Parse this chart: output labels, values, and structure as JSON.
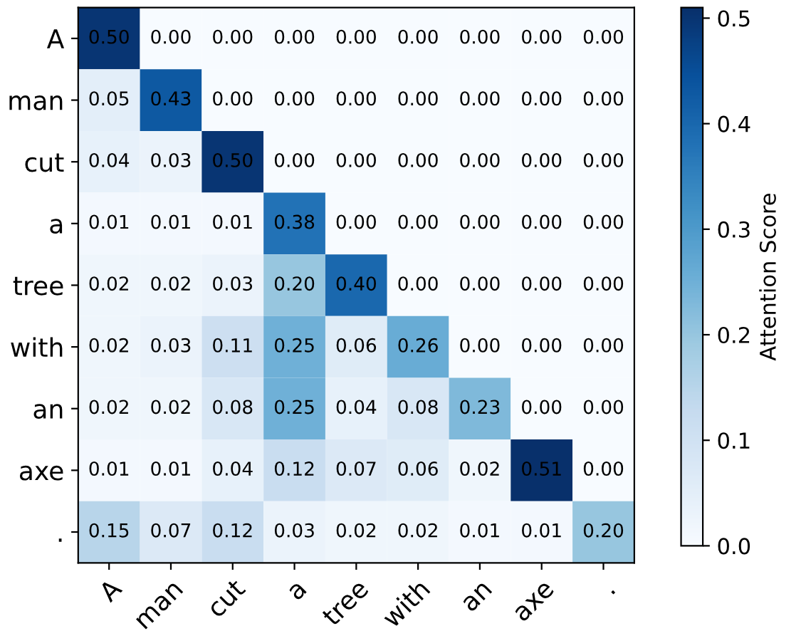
{
  "chart_data": {
    "type": "heatmap",
    "clabel": "Attention Score",
    "categories": [
      "A",
      "man",
      "cut",
      "a",
      "tree",
      "with",
      "an",
      "axe",
      "."
    ],
    "y_categories": [
      "A",
      "man",
      "cut",
      "a",
      "tree",
      "with",
      "an",
      "axe",
      "."
    ],
    "cells": [
      [
        0.5,
        0.0,
        0.0,
        0.0,
        0.0,
        0.0,
        0.0,
        0.0,
        0.0
      ],
      [
        0.05,
        0.43,
        0.0,
        0.0,
        0.0,
        0.0,
        0.0,
        0.0,
        0.0
      ],
      [
        0.04,
        0.03,
        0.5,
        0.0,
        0.0,
        0.0,
        0.0,
        0.0,
        0.0
      ],
      [
        0.01,
        0.01,
        0.01,
        0.38,
        0.0,
        0.0,
        0.0,
        0.0,
        0.0
      ],
      [
        0.02,
        0.02,
        0.03,
        0.2,
        0.4,
        0.0,
        0.0,
        0.0,
        0.0
      ],
      [
        0.02,
        0.03,
        0.11,
        0.25,
        0.06,
        0.26,
        0.0,
        0.0,
        0.0
      ],
      [
        0.02,
        0.02,
        0.08,
        0.25,
        0.04,
        0.08,
        0.23,
        0.0,
        0.0
      ],
      [
        0.01,
        0.01,
        0.04,
        0.12,
        0.07,
        0.06,
        0.02,
        0.51,
        0.0
      ],
      [
        0.15,
        0.07,
        0.12,
        0.03,
        0.02,
        0.02,
        0.01,
        0.01,
        0.2
      ]
    ],
    "cell_labels": [
      [
        "0.50",
        "0.00",
        "0.00",
        "0.00",
        "0.00",
        "0.00",
        "0.00",
        "0.00",
        "0.00"
      ],
      [
        "0.05",
        "0.43",
        "0.00",
        "0.00",
        "0.00",
        "0.00",
        "0.00",
        "0.00",
        "0.00"
      ],
      [
        "0.04",
        "0.03",
        "0.50",
        "0.00",
        "0.00",
        "0.00",
        "0.00",
        "0.00",
        "0.00"
      ],
      [
        "0.01",
        "0.01",
        "0.01",
        "0.38",
        "0.00",
        "0.00",
        "0.00",
        "0.00",
        "0.00"
      ],
      [
        "0.02",
        "0.02",
        "0.03",
        "0.20",
        "0.40",
        "0.00",
        "0.00",
        "0.00",
        "0.00"
      ],
      [
        "0.02",
        "0.03",
        "0.11",
        "0.25",
        "0.06",
        "0.26",
        "0.00",
        "0.00",
        "0.00"
      ],
      [
        "0.02",
        "0.02",
        "0.08",
        "0.25",
        "0.04",
        "0.08",
        "0.23",
        "0.00",
        "0.00"
      ],
      [
        "0.01",
        "0.01",
        "0.04",
        "0.12",
        "0.07",
        "0.06",
        "0.02",
        "0.51",
        "0.00"
      ],
      [
        "0.15",
        "0.07",
        "0.12",
        "0.03",
        "0.02",
        "0.02",
        "0.01",
        "0.01",
        "0.20"
      ]
    ],
    "clim": [
      0,
      0.51
    ],
    "cticks": [
      {
        "value": 0,
        "label": "0.0"
      },
      0.1,
      0.2,
      0.3,
      0.4,
      0.5
    ],
    "data_labels": true
  }
}
